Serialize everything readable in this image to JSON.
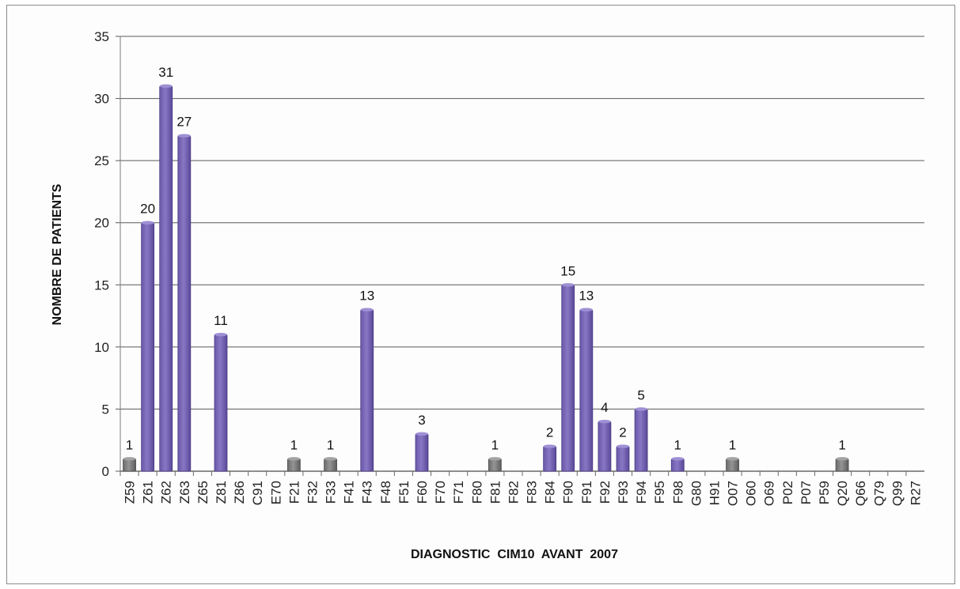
{
  "chart_data": {
    "type": "bar",
    "title": "",
    "xlabel": "DIAGNOSTIC  CIM10  AVANT  2007",
    "ylabel": "NOMBRE DE PATIENTS",
    "ylim": [
      0,
      35
    ],
    "yticks": [
      0,
      5,
      10,
      15,
      20,
      25,
      30,
      35
    ],
    "grid": true,
    "legend": "none",
    "colors": {
      "main": "#7b68b5",
      "other": "#7f7f7f"
    },
    "categories": [
      "Z59",
      "Z61",
      "Z62",
      "Z63",
      "Z65",
      "Z81",
      "Z86",
      "C91",
      "E70",
      "F21",
      "F32",
      "F33",
      "F41",
      "F43",
      "F48",
      "F51",
      "F60",
      "F70",
      "F71",
      "F80",
      "F81",
      "F82",
      "F83",
      "F84",
      "F90",
      "F91",
      "F92",
      "F93",
      "F94",
      "F95",
      "F98",
      "G80",
      "H91",
      "O07",
      "O60",
      "O69",
      "P02",
      "P07",
      "P59",
      "Q20",
      "Q66",
      "Q79",
      "Q99",
      "R27"
    ],
    "values": [
      1,
      20,
      31,
      27,
      0,
      11,
      0,
      0,
      0,
      1,
      0,
      1,
      0,
      13,
      0,
      0,
      3,
      0,
      0,
      0,
      1,
      0,
      0,
      2,
      15,
      13,
      4,
      2,
      5,
      0,
      1,
      0,
      0,
      1,
      0,
      0,
      0,
      0,
      0,
      1,
      0,
      0,
      0,
      0
    ],
    "bar_color": [
      "other",
      "main",
      "main",
      "main",
      "main",
      "main",
      "main",
      "main",
      "main",
      "other",
      "other",
      "other",
      "main",
      "main",
      "main",
      "main",
      "main",
      "main",
      "main",
      "main",
      "other",
      "main",
      "main",
      "main",
      "main",
      "main",
      "main",
      "main",
      "main",
      "main",
      "main",
      "main",
      "main",
      "other",
      "main",
      "main",
      "main",
      "main",
      "main",
      "other",
      "main",
      "main",
      "main",
      "main"
    ]
  }
}
